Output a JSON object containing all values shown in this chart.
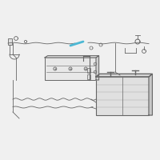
{
  "bg_color": "#ffffff",
  "highlight_color": "#4db8d4",
  "line_color": "#888888",
  "dark_color": "#666666",
  "fig_bg": "#f0f0f0"
}
